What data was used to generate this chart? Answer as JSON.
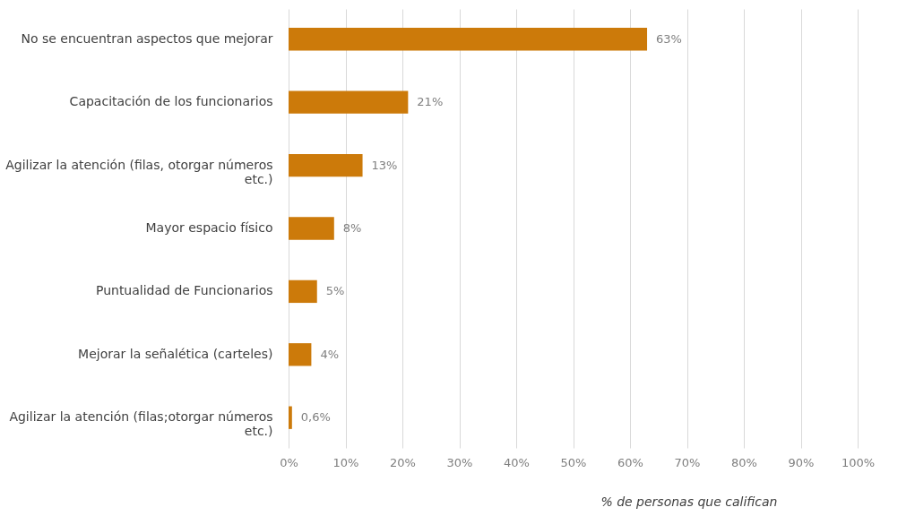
{
  "chart_data": {
    "type": "bar",
    "orientation": "horizontal",
    "xlabel": "% de personas que califican",
    "categories": [
      "No se encuentran aspectos que mejorar",
      "Capacitación de los funcionarios",
      "Agilizar la atención (filas, otorgar números etc.)",
      "Mayor espacio físico",
      "Puntualidad de Funcionarios",
      "Mejorar la señalética (carteles)",
      "Agilizar la atención (filas;otorgar números etc.)"
    ],
    "values": [
      63,
      21,
      13,
      8,
      5,
      4,
      0.6
    ],
    "value_labels": [
      "63%",
      "21%",
      "13%",
      "8%",
      "5%",
      "4%",
      "0,6%"
    ],
    "color": "#cc7a0a",
    "xlim": [
      0,
      100
    ],
    "xticks": [
      {
        "value": 0,
        "label": "0%"
      },
      {
        "value": 10,
        "label": "10%"
      },
      {
        "value": 20,
        "label": "20%"
      },
      {
        "value": 30,
        "label": "30%"
      },
      {
        "value": 40,
        "label": "40%"
      },
      {
        "value": 50,
        "label": "50%"
      },
      {
        "value": 60,
        "label": "60%"
      },
      {
        "value": 70,
        "label": "70%"
      },
      {
        "value": 80,
        "label": "80%"
      },
      {
        "value": 90,
        "label": "90%"
      },
      {
        "value": 100,
        "label": "100%"
      }
    ],
    "grid": "x"
  }
}
